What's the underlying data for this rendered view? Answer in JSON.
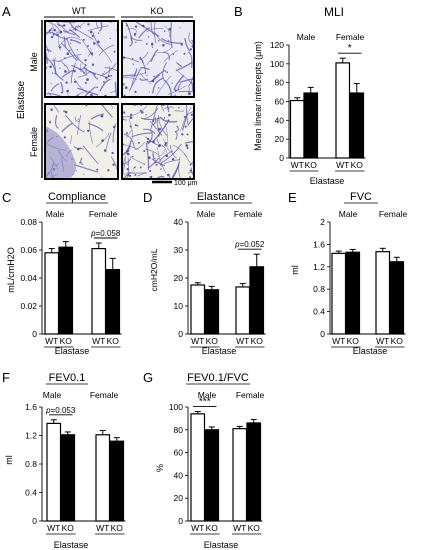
{
  "panel_a": {
    "letter": "A",
    "columns": [
      "WT",
      "KO"
    ],
    "rows": [
      "Male",
      "Female"
    ],
    "side_label": "Elastase",
    "scale_label": "100 μm",
    "colors": {
      "tissue": "#5a54b8",
      "background": "#ecebf3",
      "female_bg": "#f1f0e8"
    }
  },
  "chart_data": [
    {
      "id": "mli",
      "letter": "B",
      "type": "bar",
      "title": "MLI",
      "ylabel": "Mean linear intercepts (μm)",
      "ylim": [
        0,
        120
      ],
      "yticks": [
        "0",
        "20",
        "40",
        "60",
        "80",
        "100",
        "120"
      ],
      "groups": [
        "Male",
        "Female"
      ],
      "categories": [
        "WT",
        "KO",
        "WT",
        "KO"
      ],
      "fills": [
        "white",
        "black",
        "white",
        "black"
      ],
      "values": [
        61,
        69,
        101,
        69
      ],
      "errors": [
        3,
        6,
        5,
        10
      ],
      "xlabel": "Elastase",
      "annotations": [
        {
          "text": "*",
          "bars": [
            2,
            3
          ]
        }
      ]
    },
    {
      "id": "compliance",
      "letter": "C",
      "type": "bar",
      "title": "Compliance",
      "ylabel": "mL/cmH2O",
      "ylim": [
        0,
        0.08
      ],
      "yticks": [
        "0",
        "0.02",
        "0.04",
        "0.06",
        "0.08"
      ],
      "groups": [
        "Male",
        "Female"
      ],
      "categories": [
        "WT",
        "KO",
        "WT",
        "KO"
      ],
      "fills": [
        "white",
        "black",
        "white",
        "black"
      ],
      "values": [
        0.058,
        0.062,
        0.061,
        0.046
      ],
      "errors": [
        0.003,
        0.004,
        0.004,
        0.008
      ],
      "xlabel": "Elastase",
      "annotations": [
        {
          "text": "p=0.058",
          "bars": [
            2,
            3
          ]
        }
      ]
    },
    {
      "id": "elastance",
      "letter": "D",
      "type": "bar",
      "title": "Elastance",
      "ylabel": "cmH2O/mL",
      "ylim": [
        0,
        40
      ],
      "yticks": [
        "0",
        "10",
        "20",
        "30",
        "40"
      ],
      "groups": [
        "Male",
        "Female"
      ],
      "categories": [
        "WT",
        "KO",
        "WT",
        "KO"
      ],
      "fills": [
        "white",
        "black",
        "white",
        "black"
      ],
      "values": [
        17.5,
        15.8,
        16.8,
        24
      ],
      "errors": [
        0.8,
        1.2,
        1.2,
        4.5
      ],
      "xlabel": "Elastase",
      "annotations": [
        {
          "text": "p=0.052",
          "bars": [
            2,
            3
          ]
        }
      ]
    },
    {
      "id": "fvc",
      "letter": "E",
      "type": "bar",
      "title": "FVC",
      "ylabel": "ml",
      "ylim": [
        0,
        2
      ],
      "yticks": [
        "0",
        "0.4",
        "0.8",
        "1.2",
        "1.6",
        "2"
      ],
      "groups": [
        "Male",
        "Female"
      ],
      "categories": [
        "WT",
        "KO",
        "WT",
        "KO"
      ],
      "fills": [
        "white",
        "black",
        "white",
        "black"
      ],
      "values": [
        1.44,
        1.46,
        1.47,
        1.29
      ],
      "errors": [
        0.04,
        0.05,
        0.06,
        0.08
      ],
      "xlabel": "Elastase",
      "annotations": []
    },
    {
      "id": "fev",
      "letter": "F",
      "type": "bar",
      "title": "FEV0.1",
      "ylabel": "ml",
      "ylim": [
        0,
        1.6
      ],
      "yticks": [
        "0",
        "0.4",
        "0.8",
        "1.2",
        "1.6"
      ],
      "groups": [
        "Male",
        "Female"
      ],
      "categories": [
        "WT",
        "KO",
        "WT",
        "KO"
      ],
      "fills": [
        "white",
        "black",
        "white",
        "black"
      ],
      "values": [
        1.37,
        1.21,
        1.21,
        1.12
      ],
      "errors": [
        0.05,
        0.04,
        0.06,
        0.05
      ],
      "xlabel": "Elastase",
      "annotations": [
        {
          "text": "p=0.053",
          "bars": [
            0,
            1
          ]
        }
      ]
    },
    {
      "id": "fevfvc",
      "letter": "G",
      "type": "bar",
      "title": "FEV0.1/FVC",
      "ylabel": "%",
      "ylim": [
        0,
        100
      ],
      "yticks": [
        "0",
        "20",
        "40",
        "60",
        "80",
        "100"
      ],
      "groups": [
        "Male",
        "Female"
      ],
      "categories": [
        "WT",
        "KO",
        "WT",
        "KO"
      ],
      "fills": [
        "white",
        "black",
        "white",
        "black"
      ],
      "values": [
        94,
        80,
        81,
        86
      ],
      "errors": [
        2,
        2.5,
        2,
        3
      ],
      "xlabel": "Elastase",
      "annotations": [
        {
          "text": "***",
          "bars": [
            0,
            1
          ]
        }
      ]
    }
  ]
}
